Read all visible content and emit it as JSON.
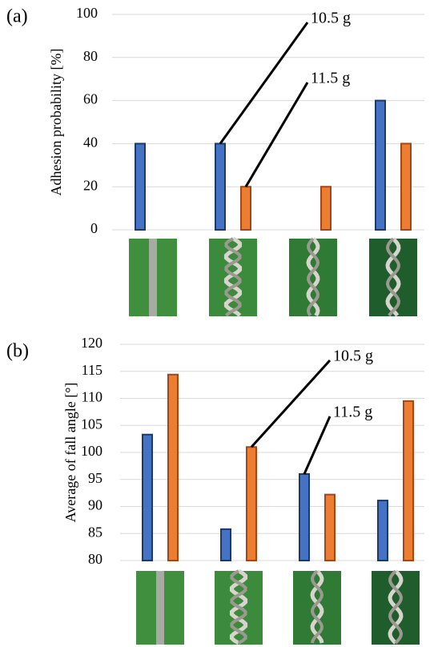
{
  "chart_data": [
    {
      "type": "bar",
      "panel_label": "(a)",
      "ylabel": "Adhesion probability [%]",
      "categories": [
        null,
        null,
        null,
        null
      ],
      "series": [
        {
          "name": "10.5 g",
          "color": "#4472c4",
          "values": [
            40,
            40,
            0,
            60
          ]
        },
        {
          "name": "11.5 g",
          "color": "#ed7d31",
          "values": [
            0,
            20,
            20,
            40
          ]
        }
      ],
      "ylim": [
        0,
        100
      ],
      "yticks": [
        0,
        20,
        40,
        60,
        80,
        100
      ],
      "grid": true
    },
    {
      "type": "bar",
      "panel_label": "(b)",
      "ylabel": "Average of fall angle [°]",
      "categories": [
        null,
        null,
        null,
        null
      ],
      "series": [
        {
          "name": "11.5 g",
          "color": "#4472c4",
          "values": [
            103.3,
            85.8,
            96,
            91.1
          ]
        },
        {
          "name": "10.5 g",
          "color": "#ed7d31",
          "values": [
            114.4,
            101,
            92.2,
            109.5
          ]
        }
      ],
      "ylim": [
        80,
        120
      ],
      "yticks": [
        80,
        85,
        90,
        95,
        100,
        105,
        110,
        115,
        120
      ],
      "grid": true
    }
  ]
}
